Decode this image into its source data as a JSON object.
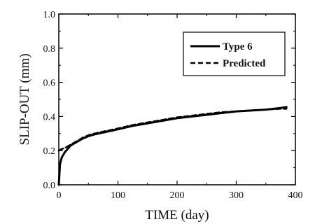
{
  "chart_data": {
    "type": "line",
    "xlabel": "TIME (day)",
    "ylabel": "SLIP-OUT (mm)",
    "xlim": [
      0,
      400
    ],
    "ylim": [
      0,
      1.0
    ],
    "x_ticks": [
      "0",
      "100",
      "200",
      "300",
      "400"
    ],
    "y_ticks": [
      "0.0",
      "0.2",
      "0.4",
      "0.6",
      "0.8",
      "1.0"
    ],
    "grid": false,
    "legend_position": "top-right",
    "series": [
      {
        "name": "Type 6",
        "style": "solid",
        "color": "#000000",
        "x": [
          0,
          2,
          5,
          10,
          15,
          20,
          30,
          40,
          50,
          60,
          80,
          100,
          125,
          150,
          175,
          200,
          225,
          250,
          275,
          300,
          325,
          350,
          375,
          385
        ],
        "y": [
          0.0,
          0.12,
          0.16,
          0.19,
          0.21,
          0.23,
          0.25,
          0.27,
          0.285,
          0.295,
          0.31,
          0.325,
          0.345,
          0.36,
          0.375,
          0.39,
          0.4,
          0.41,
          0.42,
          0.43,
          0.435,
          0.44,
          0.45,
          0.455
        ]
      },
      {
        "name": "Predicted",
        "style": "dashed",
        "color": "#000000",
        "x": [
          0,
          5,
          10,
          15,
          20,
          30,
          40,
          50,
          60,
          80,
          100,
          125,
          150,
          175,
          200,
          225,
          250,
          275,
          300,
          325,
          350,
          375,
          385
        ],
        "y": [
          0.2,
          0.21,
          0.215,
          0.225,
          0.235,
          0.255,
          0.275,
          0.29,
          0.3,
          0.315,
          0.33,
          0.35,
          0.365,
          0.38,
          0.395,
          0.405,
          0.415,
          0.425,
          0.43,
          0.435,
          0.44,
          0.445,
          0.445
        ]
      }
    ]
  }
}
